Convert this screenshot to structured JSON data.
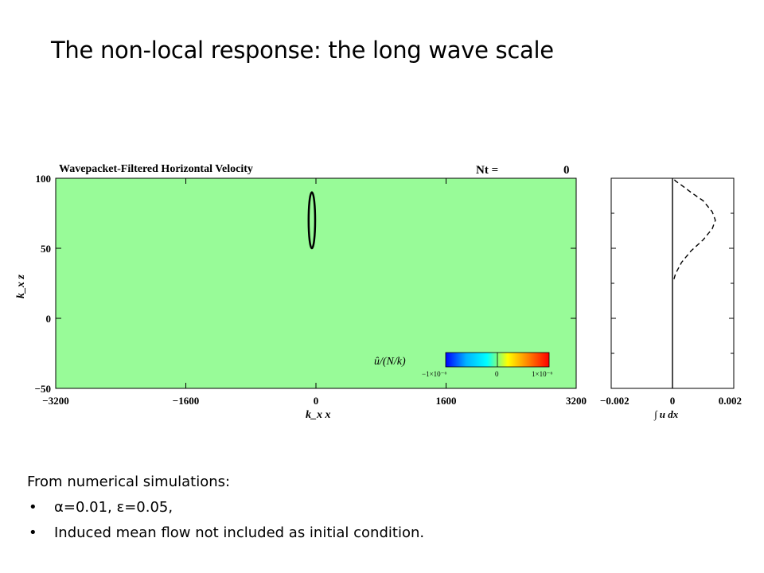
{
  "slide": {
    "title": "The non-local response: the long wave scale"
  },
  "notes": {
    "heading": "From numerical simulations:",
    "bullets": [
      "α=0.01, ε=0.05,",
      "Induced mean flow not included as initial condition."
    ]
  },
  "chart_data": [
    {
      "type": "heatmap",
      "title": "Wavepacket-Filtered Horizontal Velocity",
      "time_label": "Nt =",
      "time_value": "0",
      "xlabel": "k_x x",
      "ylabel": "k_x z",
      "xlim": [
        -3200,
        3200
      ],
      "ylim": [
        -50,
        100
      ],
      "xticks": [
        -3200,
        -1600,
        0,
        1600,
        3200
      ],
      "xtick_labels": [
        "−3200",
        "−1600",
        "0",
        "1600",
        "3200"
      ],
      "yticks": [
        100,
        50,
        0,
        -50
      ],
      "ytick_labels": [
        "100",
        "50",
        "0",
        "−50"
      ],
      "background_color": "#98fb98",
      "contour": {
        "x_center": -50,
        "z_center": 70,
        "x_halfwidth": 40,
        "z_halfwidth": 20
      },
      "colorbar": {
        "label": "û/(N/k)",
        "tick_labels": [
          "−1×10⁻⁶",
          "0",
          "1×10⁻⁶"
        ],
        "colors": [
          "#0000ff",
          "#00b4ff",
          "#00ffff",
          "#ffff00",
          "#ff8000",
          "#ff0000"
        ]
      }
    },
    {
      "type": "line",
      "xlabel": "∫ u dx",
      "xlim": [
        -0.002,
        0.002
      ],
      "ylim": [
        -50,
        100
      ],
      "xticks": [
        -0.002,
        0,
        0.002
      ],
      "xtick_labels": [
        "−0.002",
        "0",
        "0.002"
      ],
      "series": [
        {
          "style": "solid",
          "x": [
            0,
            0
          ],
          "y": [
            -50,
            100
          ]
        },
        {
          "style": "dashed",
          "x": [
            5e-05,
            0.0001,
            0.0003,
            0.0006,
            0.001,
            0.0013,
            0.0014,
            0.0013,
            0.001,
            0.0006,
            0.0003,
            0.0001,
            2e-05
          ],
          "y": [
            28,
            32,
            40,
            48,
            56,
            64,
            70,
            76,
            84,
            90,
            95,
            98,
            100
          ]
        }
      ]
    }
  ]
}
